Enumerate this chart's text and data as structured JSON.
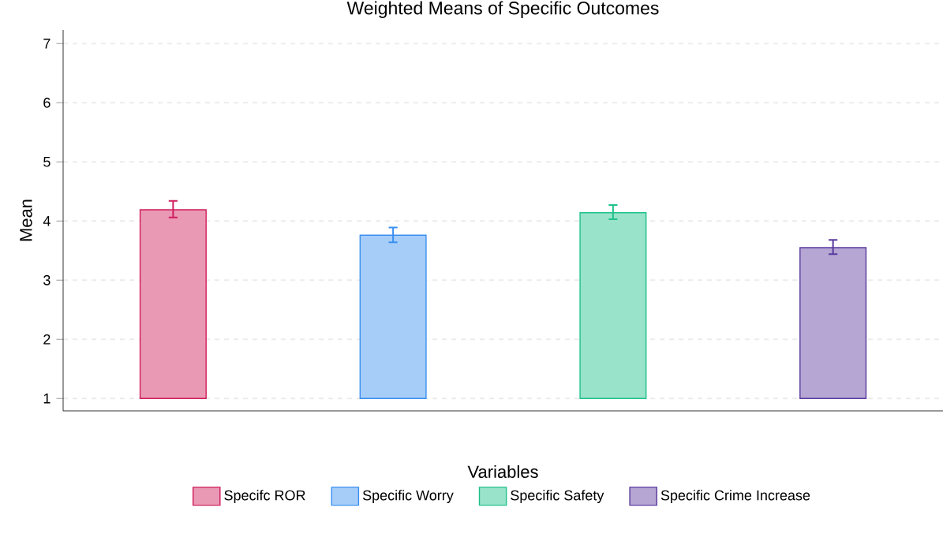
{
  "chart_data": {
    "type": "bar",
    "title": "Weighted Means of Specific Outcomes",
    "xlabel": "Variables",
    "ylabel": "Mean",
    "categories": [
      null,
      null,
      null,
      null
    ],
    "series": [
      {
        "name": "Specifc ROR",
        "color": "#d01c5b",
        "values": [
          3.19,
          null,
          null,
          null
        ],
        "base": [
          1,
          null,
          null,
          null
        ],
        "errors": [
          [
            4.06,
            4.34
          ],
          null,
          null,
          null
        ]
      },
      {
        "name": "Specific Worry",
        "color": "#3a8ff0",
        "values": [
          null,
          2.76,
          null,
          null
        ],
        "base": [
          null,
          1,
          null,
          null
        ],
        "errors": [
          null,
          [
            3.64,
            3.89
          ],
          null,
          null
        ]
      },
      {
        "name": "Specific Safety",
        "color": "#1ec18b",
        "values": [
          null,
          null,
          3.14,
          null
        ],
        "base": [
          null,
          null,
          1,
          null
        ],
        "errors": [
          null,
          null,
          [
            4.03,
            4.27
          ],
          null
        ]
      },
      {
        "name": "Specific Crime Increase",
        "color": "#5a3a9e",
        "values": [
          null,
          null,
          null,
          2.55
        ],
        "base": [
          null,
          null,
          null,
          1
        ],
        "errors": [
          null,
          null,
          null,
          [
            3.44,
            3.68
          ]
        ]
      }
    ],
    "ylim": [
      0.79,
      7.23
    ],
    "yticks": [
      1,
      2,
      3,
      4,
      5,
      6,
      7
    ],
    "grid": "y",
    "legend": "bottom",
    "tick_labels": "y"
  }
}
